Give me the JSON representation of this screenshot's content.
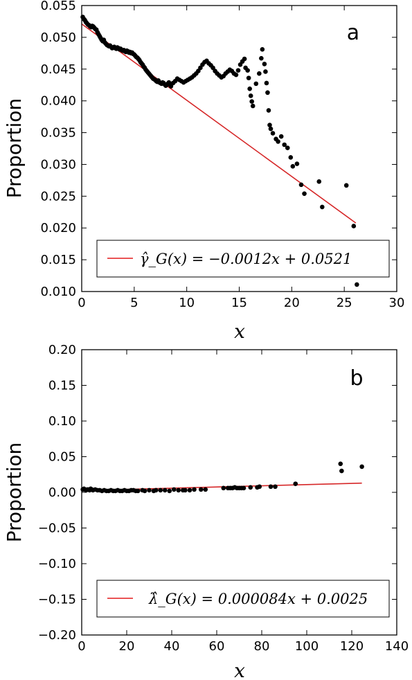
{
  "chart_data": [
    {
      "type": "scatter",
      "panel_label": "a",
      "xlabel": "x",
      "ylabel": "Proportion",
      "xlim": [
        0,
        30
      ],
      "ylim": [
        0.01,
        0.055
      ],
      "xticks": [
        "0",
        "5",
        "10",
        "15",
        "20",
        "25",
        "30"
      ],
      "yticks": [
        "0.010",
        "0.015",
        "0.020",
        "0.025",
        "0.030",
        "0.035",
        "0.040",
        "0.045",
        "0.050",
        "0.055"
      ],
      "points_color": "#000000",
      "fit": {
        "slope": -0.0012,
        "intercept": 0.0521,
        "x_range": [
          0,
          26.1
        ],
        "color": "#d62728"
      },
      "legend": {
        "label": "γ̂_G(x) = −0.0012x + 0.0521",
        "position": "lower-right"
      },
      "points": [
        [
          0.1,
          0.0532
        ],
        [
          0.2,
          0.0529
        ],
        [
          0.3,
          0.0527
        ],
        [
          0.4,
          0.0524
        ],
        [
          0.5,
          0.0522
        ],
        [
          0.6,
          0.052
        ],
        [
          0.7,
          0.0519
        ],
        [
          0.8,
          0.0517
        ],
        [
          0.9,
          0.0516
        ],
        [
          1.0,
          0.0518
        ],
        [
          1.1,
          0.0517
        ],
        [
          1.2,
          0.0515
        ],
        [
          1.3,
          0.0513
        ],
        [
          1.4,
          0.0512
        ],
        [
          1.5,
          0.0508
        ],
        [
          1.6,
          0.0505
        ],
        [
          1.7,
          0.0502
        ],
        [
          1.8,
          0.0499
        ],
        [
          1.9,
          0.0496
        ],
        [
          2.0,
          0.0494
        ],
        [
          2.1,
          0.0496
        ],
        [
          2.2,
          0.0492
        ],
        [
          2.3,
          0.049
        ],
        [
          2.4,
          0.0488
        ],
        [
          2.5,
          0.0487
        ],
        [
          2.6,
          0.0486
        ],
        [
          2.7,
          0.0487
        ],
        [
          2.8,
          0.0485
        ],
        [
          2.9,
          0.0483
        ],
        [
          3.0,
          0.0484
        ],
        [
          3.1,
          0.0485
        ],
        [
          3.2,
          0.0483
        ],
        [
          3.3,
          0.0482
        ],
        [
          3.4,
          0.0484
        ],
        [
          3.5,
          0.0483
        ],
        [
          3.6,
          0.0481
        ],
        [
          3.7,
          0.0482
        ],
        [
          3.8,
          0.048
        ],
        [
          3.9,
          0.0479
        ],
        [
          4.0,
          0.048
        ],
        [
          4.1,
          0.0478
        ],
        [
          4.2,
          0.0477
        ],
        [
          4.3,
          0.0479
        ],
        [
          4.4,
          0.0478
        ],
        [
          4.5,
          0.0476
        ],
        [
          4.6,
          0.0477
        ],
        [
          4.7,
          0.0475
        ],
        [
          4.8,
          0.0476
        ],
        [
          4.9,
          0.0474
        ],
        [
          5.0,
          0.0473
        ],
        [
          5.1,
          0.0471
        ],
        [
          5.2,
          0.0469
        ],
        [
          5.3,
          0.0468
        ],
        [
          5.4,
          0.0466
        ],
        [
          5.5,
          0.0464
        ],
        [
          5.6,
          0.0461
        ],
        [
          5.7,
          0.0459
        ],
        [
          5.8,
          0.0457
        ],
        [
          5.9,
          0.0454
        ],
        [
          6.0,
          0.0452
        ],
        [
          6.1,
          0.0449
        ],
        [
          6.2,
          0.0447
        ],
        [
          6.3,
          0.0445
        ],
        [
          6.4,
          0.0443
        ],
        [
          6.5,
          0.0441
        ],
        [
          6.6,
          0.0439
        ],
        [
          6.7,
          0.0437
        ],
        [
          6.8,
          0.0435
        ],
        [
          6.9,
          0.0434
        ],
        [
          7.0,
          0.0433
        ],
        [
          7.1,
          0.0431
        ],
        [
          7.2,
          0.043
        ],
        [
          7.3,
          0.0432
        ],
        [
          7.4,
          0.0429
        ],
        [
          7.5,
          0.0428
        ],
        [
          7.6,
          0.0427
        ],
        [
          7.7,
          0.0429
        ],
        [
          7.8,
          0.0428
        ],
        [
          7.9,
          0.0426
        ],
        [
          8.0,
          0.0424
        ],
        [
          8.1,
          0.0425
        ],
        [
          8.2,
          0.0427
        ],
        [
          8.3,
          0.0429
        ],
        [
          8.4,
          0.0426
        ],
        [
          8.5,
          0.0423
        ],
        [
          8.7,
          0.0428
        ],
        [
          8.9,
          0.0431
        ],
        [
          9.1,
          0.0435
        ],
        [
          9.3,
          0.0433
        ],
        [
          9.5,
          0.0431
        ],
        [
          9.7,
          0.0429
        ],
        [
          9.9,
          0.0431
        ],
        [
          10.1,
          0.0433
        ],
        [
          10.3,
          0.0435
        ],
        [
          10.5,
          0.0437
        ],
        [
          10.7,
          0.044
        ],
        [
          10.9,
          0.0443
        ],
        [
          11.1,
          0.0447
        ],
        [
          11.3,
          0.0452
        ],
        [
          11.5,
          0.0457
        ],
        [
          11.7,
          0.0461
        ],
        [
          11.9,
          0.0463
        ],
        [
          12.1,
          0.0459
        ],
        [
          12.3,
          0.0456
        ],
        [
          12.5,
          0.0452
        ],
        [
          12.7,
          0.0447
        ],
        [
          12.9,
          0.0443
        ],
        [
          13.1,
          0.044
        ],
        [
          13.3,
          0.0437
        ],
        [
          13.5,
          0.0439
        ],
        [
          13.7,
          0.0443
        ],
        [
          13.9,
          0.0446
        ],
        [
          14.1,
          0.0449
        ],
        [
          14.3,
          0.0447
        ],
        [
          14.5,
          0.0443
        ],
        [
          14.7,
          0.0441
        ],
        [
          14.9,
          0.0448
        ],
        [
          15.1,
          0.0457
        ],
        [
          15.3,
          0.0462
        ],
        [
          15.5,
          0.0466
        ],
        [
          15.6,
          0.0452
        ],
        [
          15.8,
          0.0448
        ],
        [
          15.9,
          0.0436
        ],
        [
          16.0,
          0.0419
        ],
        [
          16.1,
          0.0408
        ],
        [
          16.2,
          0.0399
        ],
        [
          16.3,
          0.0392
        ],
        [
          16.6,
          0.0427
        ],
        [
          16.9,
          0.0443
        ],
        [
          17.1,
          0.0467
        ],
        [
          17.2,
          0.0481
        ],
        [
          17.4,
          0.0458
        ],
        [
          17.5,
          0.0446
        ],
        [
          17.6,
          0.0428
        ],
        [
          17.7,
          0.0413
        ],
        [
          17.8,
          0.0385
        ],
        [
          17.9,
          0.0362
        ],
        [
          18.0,
          0.0356
        ],
        [
          18.2,
          0.0349
        ],
        [
          18.5,
          0.034
        ],
        [
          18.7,
          0.0336
        ],
        [
          19.0,
          0.0344
        ],
        [
          19.3,
          0.0331
        ],
        [
          19.6,
          0.0326
        ],
        [
          19.9,
          0.0311
        ],
        [
          20.1,
          0.0297
        ],
        [
          20.5,
          0.0301
        ],
        [
          20.9,
          0.0268
        ],
        [
          21.2,
          0.0254
        ],
        [
          22.6,
          0.0273
        ],
        [
          22.9,
          0.0233
        ],
        [
          25.2,
          0.0267
        ],
        [
          25.9,
          0.0203
        ],
        [
          26.2,
          0.0111
        ]
      ]
    },
    {
      "type": "scatter",
      "panel_label": "b",
      "xlabel": "x",
      "ylabel": "Proportion",
      "xlim": [
        0,
        140
      ],
      "ylim": [
        -0.2,
        0.2
      ],
      "xticks": [
        "0",
        "20",
        "40",
        "60",
        "80",
        "100",
        "120",
        "140"
      ],
      "yticks": [
        "−0.20",
        "−0.15",
        "−0.10",
        "−0.05",
        "0.00",
        "0.05",
        "0.10",
        "0.15",
        "0.20"
      ],
      "points_color": "#000000",
      "fit": {
        "slope": 8.4e-05,
        "intercept": 0.0025,
        "x_range": [
          0,
          124.5
        ],
        "color": "#d62728"
      },
      "legend": {
        "label": "λ̂_G(x) = 0.000084x + 0.0025",
        "position": "lower-right"
      },
      "points": [
        [
          0.5,
          0.004
        ],
        [
          1,
          0.005
        ],
        [
          1.5,
          0.004
        ],
        [
          2,
          0.003
        ],
        [
          2.5,
          0.004
        ],
        [
          3,
          0.004
        ],
        [
          3.5,
          0.003
        ],
        [
          4,
          0.005
        ],
        [
          4.5,
          0.004
        ],
        [
          5,
          0.003
        ],
        [
          6,
          0.004
        ],
        [
          7,
          0.003
        ],
        [
          8,
          0.003
        ],
        [
          9,
          0.002
        ],
        [
          10,
          0.003
        ],
        [
          11,
          0.002
        ],
        [
          12,
          0.002
        ],
        [
          13,
          0.003
        ],
        [
          14,
          0.002
        ],
        [
          15,
          0.002
        ],
        [
          16,
          0.003
        ],
        [
          17,
          0.002
        ],
        [
          18,
          0.002
        ],
        [
          19,
          0.003
        ],
        [
          20,
          0.002
        ],
        [
          21,
          0.002
        ],
        [
          22,
          0.003
        ],
        [
          23,
          0.003
        ],
        [
          24,
          0.002
        ],
        [
          25,
          0.002
        ],
        [
          27,
          0.003
        ],
        [
          28,
          0.002
        ],
        [
          30,
          0.003
        ],
        [
          32,
          0.002
        ],
        [
          33,
          0.003
        ],
        [
          35,
          0.003
        ],
        [
          37,
          0.003
        ],
        [
          39,
          0.002
        ],
        [
          41,
          0.004
        ],
        [
          43,
          0.003
        ],
        [
          45,
          0.003
        ],
        [
          46,
          0.003
        ],
        [
          48,
          0.003
        ],
        [
          50,
          0.004
        ],
        [
          53,
          0.004
        ],
        [
          55,
          0.004
        ],
        [
          63,
          0.006
        ],
        [
          65,
          0.006
        ],
        [
          66,
          0.006
        ],
        [
          67,
          0.006
        ],
        [
          68,
          0.007
        ],
        [
          69,
          0.006
        ],
        [
          70,
          0.006
        ],
        [
          71,
          0.006
        ],
        [
          72,
          0.006
        ],
        [
          75,
          0.007
        ],
        [
          78,
          0.007
        ],
        [
          79,
          0.008
        ],
        [
          84,
          0.008
        ],
        [
          86,
          0.008
        ],
        [
          95,
          0.012
        ],
        [
          115,
          0.04
        ],
        [
          115.5,
          0.03
        ],
        [
          124.5,
          0.036
        ]
      ]
    }
  ]
}
